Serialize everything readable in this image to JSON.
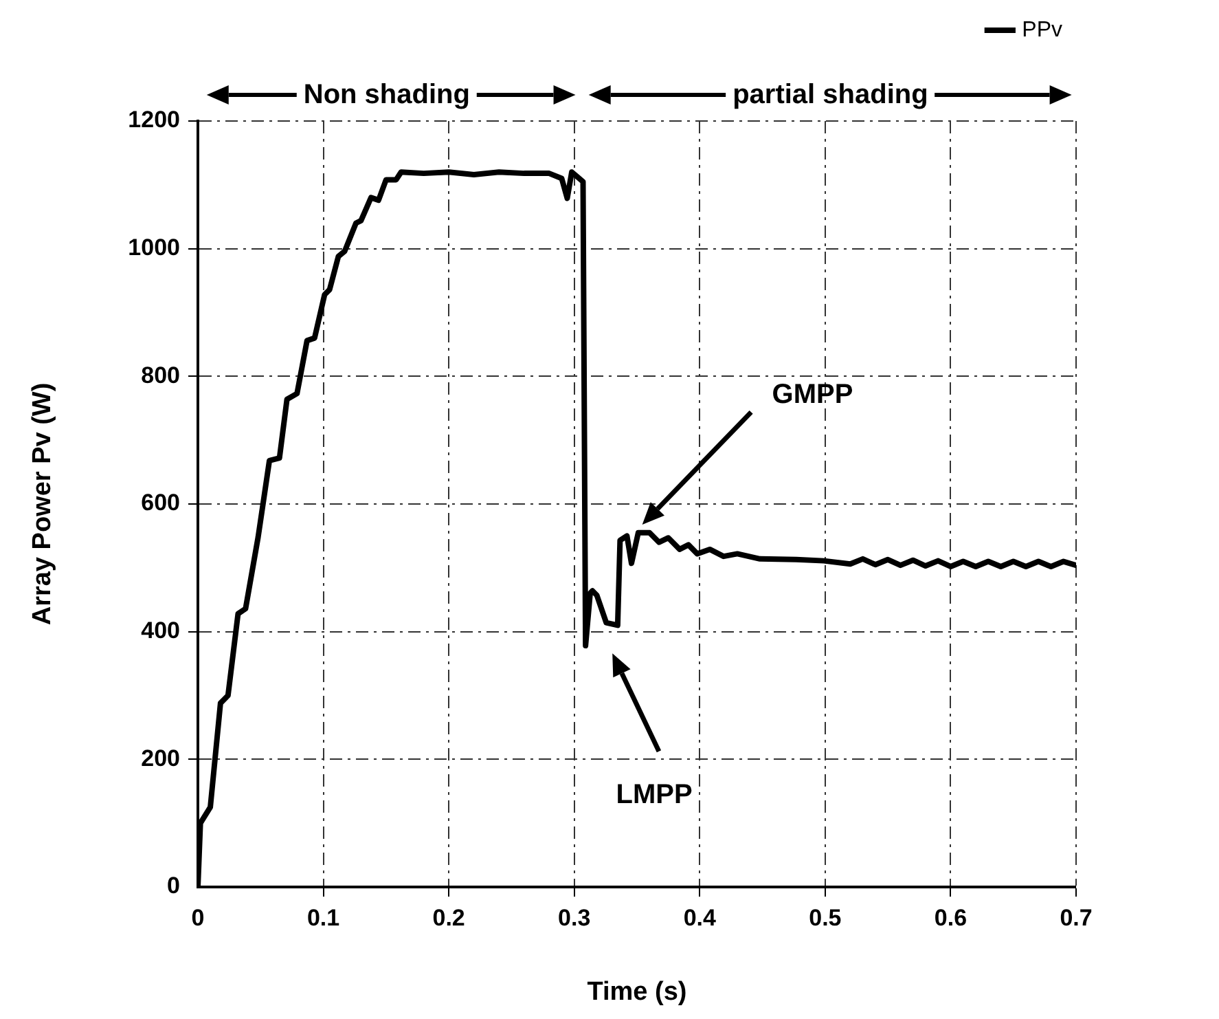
{
  "chart_data": {
    "type": "line",
    "xlabel": "Time (s)",
    "ylabel": "Array Power Pv (W)",
    "xlim": [
      0,
      0.7
    ],
    "xticks": [
      0,
      0.1,
      0.2,
      0.3,
      0.4,
      0.5,
      0.6,
      0.7
    ],
    "ylim": [
      0,
      1200
    ],
    "yticks": [
      0,
      200,
      400,
      600,
      800,
      1000,
      1200
    ],
    "grid": true,
    "legend": "top right",
    "marker": "none",
    "line_style": "solid",
    "x": [
      0,
      0.002,
      0.0099,
      0.018,
      0.024,
      0.032,
      0.038,
      0.048,
      0.057,
      0.065,
      0.071,
      0.079,
      0.087,
      0.093,
      0.101,
      0.105,
      0.112,
      0.117,
      0.126,
      0.13,
      0.138,
      0.144,
      0.15,
      0.158,
      0.162,
      0.18,
      0.2,
      0.22,
      0.24,
      0.26,
      0.28,
      0.29,
      0.2944,
      0.298,
      0.307,
      0.309,
      0.3127,
      0.3145,
      0.318,
      0.3255,
      0.3346,
      0.3365,
      0.342,
      0.3456,
      0.351,
      0.36,
      0.3676,
      0.375,
      0.384,
      0.391,
      0.398,
      0.408,
      0.419,
      0.43,
      0.448,
      0.477,
      0.499,
      0.52,
      0.53,
      0.54,
      0.55,
      0.56,
      0.57,
      0.58,
      0.59,
      0.6,
      0.61,
      0.62,
      0.63,
      0.64,
      0.65,
      0.66,
      0.67,
      0.68,
      0.69,
      0.7
    ],
    "series": [
      {
        "name": "PPv",
        "color": "#000000",
        "values": [
          0,
          100,
          125,
          288,
          300,
          428,
          436,
          548,
          668,
          672,
          764,
          773,
          856,
          860,
          928,
          936,
          988,
          996,
          1040,
          1044,
          1080,
          1076,
          1108,
          1108,
          1120,
          1118,
          1120,
          1116,
          1120,
          1118,
          1118,
          1110,
          1079,
          1120,
          1105,
          378,
          460,
          464,
          457,
          414,
          410,
          543,
          550,
          507,
          555,
          555,
          540,
          547,
          529,
          536,
          522,
          529,
          518,
          522,
          514,
          513,
          511,
          506,
          514,
          505,
          513,
          504,
          512,
          503,
          511,
          502,
          510,
          502,
          510,
          502,
          510,
          502,
          510,
          502,
          510,
          504
        ]
      }
    ],
    "annotations": [
      "Non shading",
      "partial shading",
      "GMPP",
      "LMPP"
    ]
  }
}
